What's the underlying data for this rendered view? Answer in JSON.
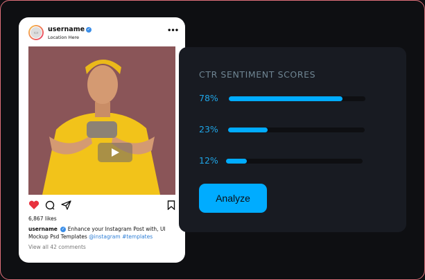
{
  "post": {
    "username": "username",
    "location": "Location Here",
    "more_icon": "ellipsis-icon",
    "likes": "6,867 likes",
    "caption_text": "Enhance your Instagram Post with, UI Mockup Psd Templates",
    "hashtags": "@instagram #templates",
    "comments_link": "View all 42 comments",
    "liked": true,
    "colors": {
      "heart": "#e8313e",
      "link": "#2f7fd6",
      "verified": "#3b8ee8"
    }
  },
  "panel": {
    "title": "CTR SENTIMENT SCORES",
    "scores": [
      {
        "label": "78%",
        "fill": 0.83
      },
      {
        "label": "23%",
        "fill": 0.29
      },
      {
        "label": "12%",
        "fill": 0.15
      }
    ],
    "analyze_label": "Analyze",
    "colors": {
      "accent": "#00acff",
      "panel": "#181b22",
      "background": "#0e0f12"
    }
  }
}
